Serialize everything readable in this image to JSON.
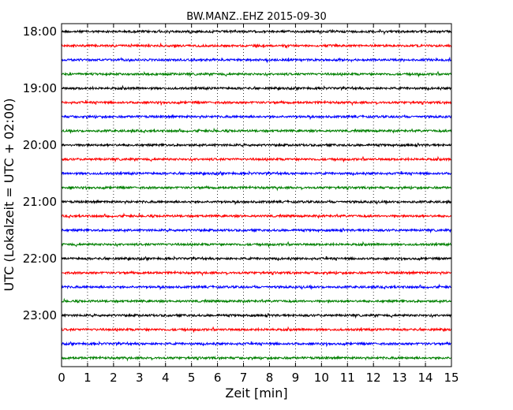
{
  "chart_data": {
    "type": "line",
    "title": "BW.MANZ..EHZ 2015-09-30",
    "xlabel": "Zeit  [min]",
    "ylabel": "UTC (Lokalzeit = UTC + 02:00)",
    "xlim": [
      0,
      15
    ],
    "x_ticks": [
      "0",
      "1",
      "2",
      "3",
      "4",
      "5",
      "6",
      "7",
      "8",
      "9",
      "10",
      "11",
      "12",
      "13",
      "14",
      "15"
    ],
    "y_tick_labels": [
      "18:00",
      "19:00",
      "20:00",
      "21:00",
      "22:00",
      "23:00"
    ],
    "grid": "vertical-dotted",
    "trace_colors": [
      "#000000",
      "#ff0000",
      "#0000ff",
      "#008000"
    ],
    "traces": [
      {
        "start": "18:00",
        "color": "#000000"
      },
      {
        "start": "18:15",
        "color": "#ff0000"
      },
      {
        "start": "18:30",
        "color": "#0000ff"
      },
      {
        "start": "18:45",
        "color": "#008000"
      },
      {
        "start": "19:00",
        "color": "#000000"
      },
      {
        "start": "19:15",
        "color": "#ff0000"
      },
      {
        "start": "19:30",
        "color": "#0000ff"
      },
      {
        "start": "19:45",
        "color": "#008000"
      },
      {
        "start": "20:00",
        "color": "#000000"
      },
      {
        "start": "20:15",
        "color": "#ff0000"
      },
      {
        "start": "20:30",
        "color": "#0000ff"
      },
      {
        "start": "20:45",
        "color": "#008000"
      },
      {
        "start": "21:00",
        "color": "#000000"
      },
      {
        "start": "21:15",
        "color": "#ff0000"
      },
      {
        "start": "21:30",
        "color": "#0000ff"
      },
      {
        "start": "21:45",
        "color": "#008000"
      },
      {
        "start": "22:00",
        "color": "#000000"
      },
      {
        "start": "22:15",
        "color": "#ff0000"
      },
      {
        "start": "22:30",
        "color": "#0000ff"
      },
      {
        "start": "22:45",
        "color": "#008000"
      },
      {
        "start": "23:00",
        "color": "#000000"
      },
      {
        "start": "23:15",
        "color": "#ff0000"
      },
      {
        "start": "23:30",
        "color": "#0000ff"
      },
      {
        "start": "23:45",
        "color": "#008000"
      }
    ]
  }
}
